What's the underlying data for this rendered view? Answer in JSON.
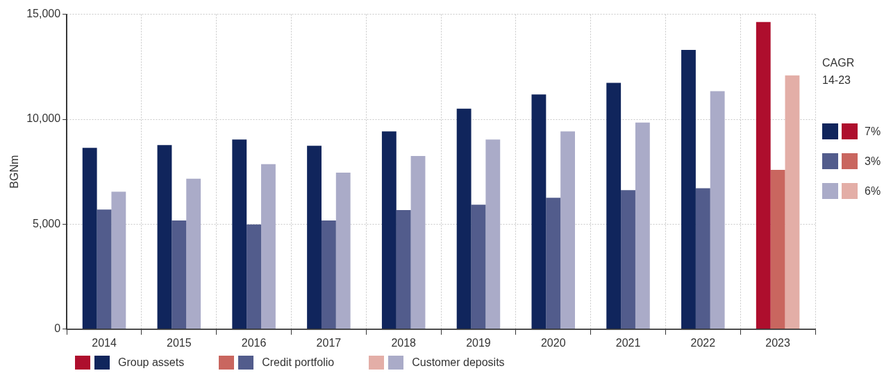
{
  "chart_data": {
    "type": "bar",
    "ylabel": "BGNm",
    "categories": [
      "2014",
      "2015",
      "2016",
      "2017",
      "2018",
      "2019",
      "2020",
      "2021",
      "2022",
      "2023"
    ],
    "series": [
      {
        "name": "Group assets",
        "color": "#10255c",
        "colors": [
          "#10255c",
          "#10255c",
          "#10255c",
          "#10255c",
          "#10255c",
          "#10255c",
          "#10255c",
          "#10255c",
          "#10255c",
          "#ae0e2d"
        ],
        "values": [
          8640,
          8770,
          9030,
          8740,
          9420,
          10500,
          11180,
          11730,
          13300,
          14630
        ]
      },
      {
        "name": "Credit portfolio",
        "color": "#525c8c",
        "colors": [
          "#525c8c",
          "#525c8c",
          "#525c8c",
          "#525c8c",
          "#525c8c",
          "#525c8c",
          "#525c8c",
          "#525c8c",
          "#525c8c",
          "#c9665f"
        ],
        "values": [
          5700,
          5180,
          4990,
          5180,
          5670,
          5930,
          6260,
          6620,
          6710,
          7590
        ]
      },
      {
        "name": "Customer deposits",
        "color": "#aaabc8",
        "colors": [
          "#aaabc8",
          "#aaabc8",
          "#aaabc8",
          "#aaabc8",
          "#aaabc8",
          "#aaabc8",
          "#aaabc8",
          "#aaabc8",
          "#aaabc8",
          "#e3aea7"
        ],
        "values": [
          6550,
          7170,
          7860,
          7460,
          8250,
          9030,
          9420,
          9840,
          11340,
          12090
        ]
      }
    ],
    "ylim": [
      0,
      15000
    ],
    "yticks": [
      {
        "value": 0,
        "label": "0"
      },
      {
        "value": 5000,
        "label": "5,000"
      },
      {
        "value": 10000,
        "label": "10,000"
      },
      {
        "value": 15000,
        "label": "15,000"
      }
    ],
    "grid": true,
    "legend": "bottom",
    "annotations": [
      "CAGR 14-23",
      "7%",
      "3%",
      "6%"
    ]
  }
}
